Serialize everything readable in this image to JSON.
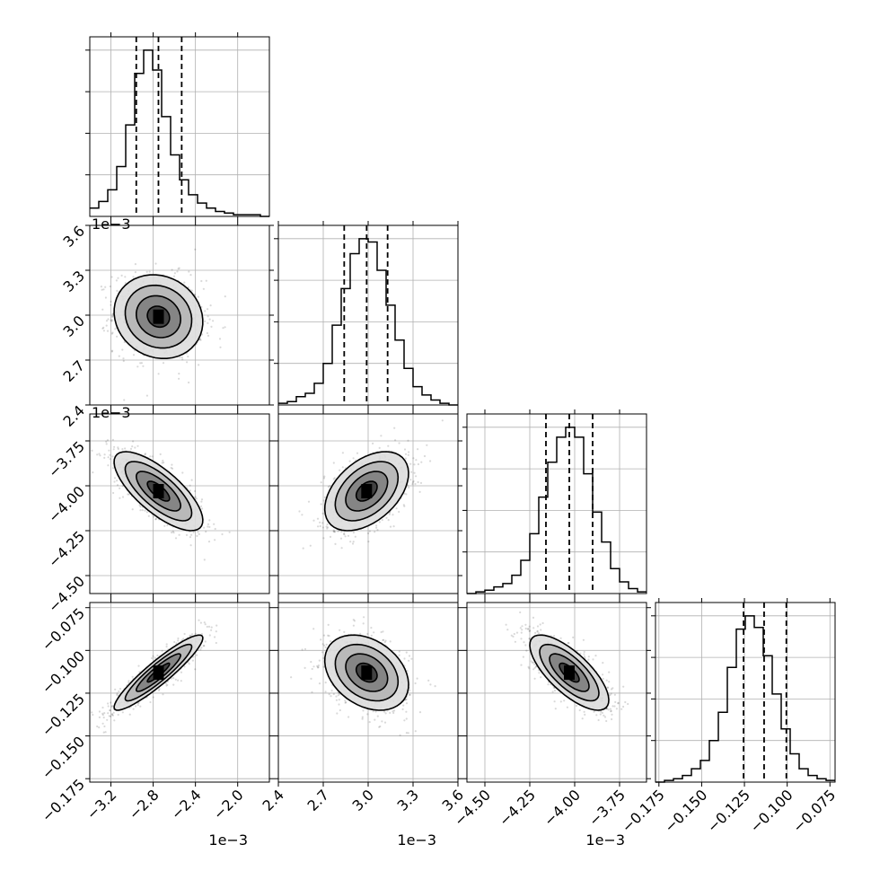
{
  "chart_data": {
    "type": "corner",
    "n_params": 4,
    "params": [
      {
        "index": 0,
        "range": [
          -0.0034,
          -0.0017
        ],
        "ticks": [
          -0.0032,
          -0.0028,
          -0.0024,
          -0.002
        ],
        "tick_labels": [
          "−3.2",
          "−2.8",
          "−2.4",
          "−2.0"
        ],
        "offset_text": "1e−3",
        "center": -0.00275,
        "sigma": 0.00021,
        "quantiles": [
          -0.00296,
          -0.00275,
          -0.00253
        ],
        "hist": [
          0.05,
          0.09,
          0.16,
          0.3,
          0.55,
          0.86,
          1.0,
          0.88,
          0.6,
          0.37,
          0.22,
          0.13,
          0.08,
          0.05,
          0.03,
          0.02,
          0.01,
          0.01,
          0.01,
          0.0
        ]
      },
      {
        "index": 1,
        "range": [
          0.0024,
          0.0036
        ],
        "ticks": [
          0.0024,
          0.0027,
          0.003,
          0.0033,
          0.0036
        ],
        "tick_labels": [
          "2.4",
          "2.7",
          "3.0",
          "3.3",
          "3.6"
        ],
        "offset_text": "1e−3",
        "center": 0.00299,
        "sigma": 0.00014,
        "quantiles": [
          0.00284,
          0.00299,
          0.00313
        ],
        "hist": [
          0.01,
          0.02,
          0.05,
          0.07,
          0.13,
          0.25,
          0.48,
          0.7,
          0.91,
          1.0,
          0.98,
          0.81,
          0.6,
          0.39,
          0.22,
          0.11,
          0.06,
          0.03,
          0.01,
          0.0
        ]
      },
      {
        "index": 2,
        "range": [
          -0.0046,
          -0.0036
        ],
        "ticks": [
          -0.0045,
          -0.00425,
          -0.004,
          -0.00375
        ],
        "tick_labels": [
          "−4.50",
          "−4.25",
          "−4.00",
          "−3.75"
        ],
        "offset_text": "1e−3",
        "center": -0.00403,
        "sigma": 0.00011,
        "quantiles": [
          -0.00416,
          -0.00403,
          -0.0039
        ],
        "hist": [
          0.0,
          0.01,
          0.02,
          0.04,
          0.06,
          0.11,
          0.2,
          0.36,
          0.58,
          0.79,
          0.94,
          1.0,
          0.94,
          0.72,
          0.49,
          0.31,
          0.15,
          0.07,
          0.03,
          0.01
        ]
      },
      {
        "index": 3,
        "range": [
          -0.177,
          -0.072
        ],
        "ticks": [
          -0.175,
          -0.15,
          -0.125,
          -0.1,
          -0.075
        ],
        "tick_labels": [
          "−0.175",
          "−0.150",
          "−0.125",
          "−0.100",
          "−0.075"
        ],
        "offset_text": "",
        "center": -0.113,
        "sigma": 0.011,
        "quantiles": [
          -0.1255,
          -0.1135,
          -0.1005
        ],
        "hist": [
          0.0,
          0.01,
          0.02,
          0.04,
          0.08,
          0.13,
          0.25,
          0.42,
          0.69,
          0.92,
          1.0,
          0.93,
          0.76,
          0.53,
          0.32,
          0.17,
          0.08,
          0.04,
          0.02,
          0.01
        ]
      }
    ],
    "correlations": [
      {
        "i": 1,
        "j": 0,
        "rho": -0.12
      },
      {
        "i": 2,
        "j": 0,
        "rho": -0.74
      },
      {
        "i": 2,
        "j": 1,
        "rho": 0.45
      },
      {
        "i": 3,
        "j": 0,
        "rho": 0.92
      },
      {
        "i": 3,
        "j": 1,
        "rho": -0.32
      },
      {
        "i": 3,
        "j": 2,
        "rho": -0.73
      }
    ],
    "contour_levels_sigma": [
      0.5,
      1.0,
      1.5,
      2.0
    ],
    "grid": true,
    "colors": {
      "line": "#000000",
      "grid": "#b0b0b0",
      "points": "#000000"
    }
  }
}
